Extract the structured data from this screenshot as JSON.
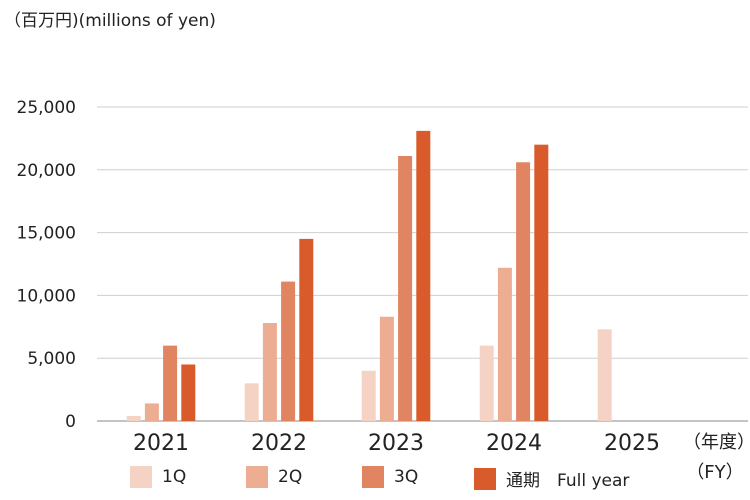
{
  "chart_data": {
    "type": "bar",
    "unit_label": "（百万円)(millions of yen)",
    "fy_label_jp": "（年度）",
    "fy_label_en": "（FY）",
    "categories": [
      "2021",
      "2022",
      "2023",
      "2024",
      "2025"
    ],
    "series": [
      {
        "name": "1Q",
        "color": "#f5d3c4",
        "values": [
          400,
          3000,
          4000,
          6000,
          7300
        ]
      },
      {
        "name": "2Q",
        "color": "#ecad93",
        "values": [
          1400,
          7800,
          8300,
          12200,
          null
        ]
      },
      {
        "name": "3Q",
        "color": "#e08461",
        "values": [
          6000,
          11100,
          21100,
          20600,
          null
        ]
      },
      {
        "name": "通期　Full year",
        "color": "#d95a2b",
        "values": [
          4500,
          14500,
          23100,
          22000,
          null
        ]
      }
    ],
    "yticks": [
      "0",
      "5,000",
      "10,000",
      "15,000",
      "20,000",
      "25,000"
    ],
    "ylim": [
      0,
      25000
    ],
    "grid": true,
    "legend_position": "bottom"
  }
}
